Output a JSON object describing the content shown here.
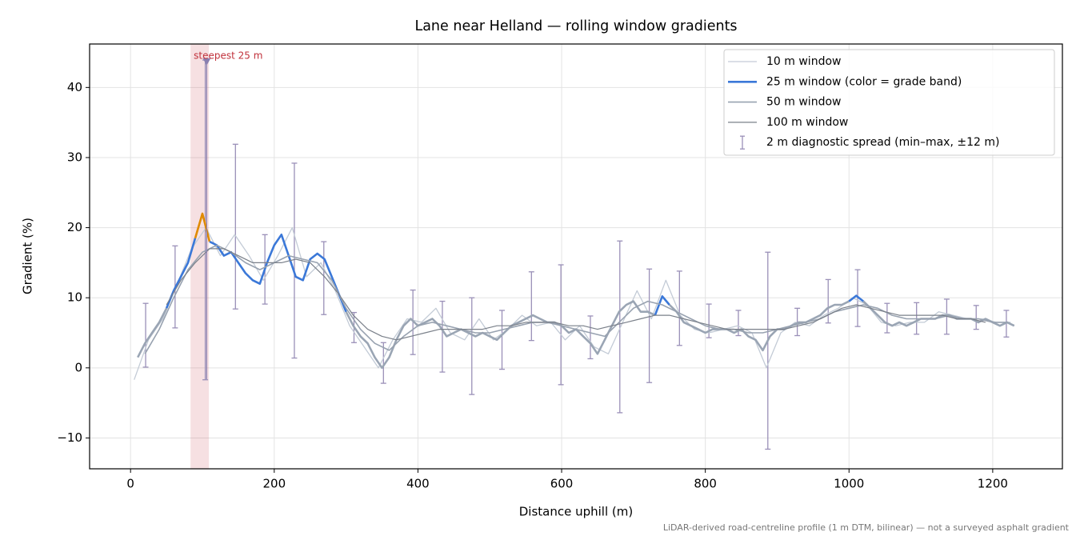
{
  "chart_data": {
    "type": "line",
    "title": "Lane near Helland — rolling window gradients",
    "x_label": "Distance uphill (m)",
    "y_label": "Gradient (%)",
    "footnote": "LiDAR-derived road-centreline profile (1 m DTM, bilinear) — not a surveyed asphalt gradient",
    "xlim": [
      -57,
      1297
    ],
    "ylim": [
      -14.4,
      46.2
    ],
    "xticks": [
      0,
      200,
      400,
      600,
      800,
      1000,
      1200
    ],
    "yticks": [
      {
        "value": -10,
        "label": "−10"
      },
      0,
      10,
      20,
      30,
      40
    ],
    "grid": true,
    "legend": "upper right",
    "series": [
      {
        "name": "10 m window",
        "color": "#c3cbd6",
        "width": 1.3,
        "x": [
          5,
          25,
          45,
          65,
          85,
          105,
          125,
          145,
          165,
          185,
          205,
          225,
          245,
          265,
          285,
          305,
          325,
          345,
          365,
          385,
          405,
          425,
          445,
          465,
          485,
          505,
          525,
          545,
          565,
          585,
          605,
          625,
          645,
          665,
          685,
          705,
          725,
          745,
          765,
          785,
          805,
          825,
          845,
          865,
          885,
          905,
          925,
          945,
          965,
          985,
          1005,
          1025,
          1045,
          1065,
          1085,
          1105,
          1125,
          1145,
          1165,
          1185,
          1205,
          1225
        ],
        "values": [
          -1.7,
          4,
          7,
          12,
          17,
          20,
          16,
          19,
          16,
          12.5,
          16,
          20,
          13,
          15,
          11,
          6,
          3,
          0,
          4,
          7,
          6.5,
          8.5,
          5,
          4,
          7,
          4,
          5.5,
          7.5,
          6,
          6.5,
          4,
          6,
          3,
          2,
          6.5,
          11,
          7,
          12.5,
          7.5,
          5.5,
          5,
          5.5,
          6,
          5,
          0,
          5,
          6.5,
          6,
          7.5,
          8.5,
          10,
          9,
          6.5,
          6,
          6.5,
          6.5,
          8,
          7.5,
          7,
          7,
          6.5,
          6.5
        ]
      },
      {
        "name": "25 m window (color = grade band)",
        "color": "#9aa5b4",
        "legend_color": "#3b78d8",
        "width": 2.6,
        "grade_bands": [
          {
            "from": 10,
            "color": "#3b78d8"
          },
          {
            "from": 20,
            "color": "#e08a00"
          }
        ],
        "x": [
          10,
          20,
          30,
          40,
          50,
          60,
          70,
          80,
          90,
          100,
          110,
          120,
          130,
          140,
          150,
          160,
          170,
          180,
          190,
          200,
          210,
          220,
          230,
          240,
          250,
          260,
          270,
          280,
          290,
          300,
          310,
          320,
          330,
          340,
          350,
          360,
          370,
          380,
          390,
          400,
          410,
          420,
          430,
          440,
          450,
          460,
          470,
          480,
          490,
          500,
          510,
          520,
          530,
          540,
          550,
          560,
          570,
          580,
          590,
          600,
          610,
          620,
          630,
          640,
          650,
          660,
          670,
          680,
          690,
          700,
          710,
          720,
          730,
          740,
          750,
          760,
          770,
          780,
          790,
          800,
          810,
          820,
          830,
          840,
          850,
          860,
          870,
          880,
          890,
          900,
          910,
          920,
          930,
          940,
          950,
          960,
          970,
          980,
          990,
          1000,
          1010,
          1020,
          1030,
          1040,
          1050,
          1060,
          1070,
          1080,
          1090,
          1100,
          1110,
          1120,
          1130,
          1140,
          1150,
          1160,
          1170,
          1180,
          1190,
          1200,
          1210,
          1220,
          1230
        ],
        "values": [
          1.5,
          3.5,
          5,
          6.5,
          8.5,
          11,
          13,
          15,
          18.5,
          22,
          18,
          17.5,
          16,
          16.5,
          15,
          13.5,
          12.5,
          12,
          15,
          17.5,
          19,
          16,
          13,
          12.5,
          15.5,
          16.3,
          15.5,
          13,
          10.5,
          8,
          6,
          4.5,
          3.5,
          1.5,
          0,
          1.5,
          4,
          6,
          7,
          6,
          6.5,
          7,
          6,
          4.5,
          5,
          5.5,
          5,
          4.5,
          5,
          4.5,
          4,
          5,
          6,
          6.5,
          7,
          7.5,
          7,
          6.5,
          6.5,
          6,
          5,
          5.5,
          4.5,
          3.5,
          2,
          4,
          6,
          8,
          9,
          9.5,
          8,
          8,
          7.5,
          10.2,
          9,
          8,
          6.5,
          6,
          5.5,
          5,
          5.5,
          5.5,
          5.5,
          5,
          5.5,
          4.5,
          4,
          2.5,
          4.5,
          5.5,
          5.5,
          6,
          6.5,
          6.5,
          7,
          7.5,
          8.5,
          9,
          9,
          9.5,
          10.3,
          9.5,
          8.5,
          7.5,
          6.5,
          6,
          6.5,
          6,
          6.5,
          7,
          7,
          7,
          7.5,
          7.5,
          7,
          7,
          7,
          6.5,
          7,
          6.5,
          6,
          6.5,
          6
        ]
      },
      {
        "name": "50 m window",
        "color": "#98a2b0",
        "width": 1.6,
        "x": [
          20,
          40,
          60,
          80,
          100,
          120,
          140,
          160,
          180,
          200,
          220,
          240,
          260,
          280,
          300,
          320,
          340,
          360,
          380,
          400,
          420,
          440,
          460,
          480,
          500,
          520,
          540,
          560,
          580,
          600,
          620,
          640,
          660,
          680,
          700,
          720,
          740,
          760,
          780,
          800,
          820,
          840,
          860,
          880,
          900,
          920,
          940,
          960,
          980,
          1000,
          1020,
          1040,
          1060,
          1080,
          1100,
          1120,
          1140,
          1160,
          1180,
          1200,
          1220
        ],
        "values": [
          2,
          5.5,
          10,
          14,
          16.5,
          17.5,
          16.5,
          15,
          14,
          15,
          16,
          15.5,
          15,
          12.5,
          8.5,
          5.5,
          3.5,
          2.5,
          4.5,
          6,
          6.5,
          6,
          5.5,
          5,
          5,
          5.5,
          6,
          6.5,
          6.5,
          6,
          5.5,
          5,
          4.5,
          6.5,
          8.5,
          9.5,
          9,
          8,
          7,
          6,
          5.5,
          5.5,
          5,
          5,
          5.5,
          6,
          6.5,
          7,
          8,
          8.5,
          9,
          8.5,
          7.5,
          7,
          7,
          7,
          7.5,
          7,
          7,
          6.5,
          6.5
        ]
      },
      {
        "name": "100 m window",
        "color": "#7a808a",
        "width": 1.2,
        "x": [
          50,
          70,
          90,
          110,
          130,
          150,
          170,
          190,
          210,
          230,
          250,
          270,
          290,
          310,
          330,
          350,
          370,
          390,
          410,
          430,
          450,
          470,
          490,
          510,
          530,
          550,
          570,
          590,
          610,
          630,
          650,
          670,
          690,
          710,
          730,
          750,
          770,
          790,
          810,
          830,
          850,
          870,
          890,
          910,
          930,
          950,
          970,
          990,
          1010,
          1030,
          1050,
          1070,
          1090,
          1110,
          1130,
          1150,
          1170,
          1190
        ],
        "values": [
          9,
          12.5,
          15,
          17,
          17,
          16,
          15,
          15,
          15,
          15.5,
          15,
          13,
          10.5,
          7.5,
          5.5,
          4.5,
          4,
          4.5,
          5,
          5.5,
          5.5,
          5.5,
          5.5,
          6,
          6,
          6.5,
          6.5,
          6.5,
          6,
          6,
          5.5,
          6,
          6.5,
          7,
          7.5,
          7.5,
          7,
          6.5,
          6,
          5.5,
          5.5,
          5.5,
          5.5,
          5.5,
          6,
          6.5,
          7.5,
          8.5,
          9,
          8.5,
          8,
          7.5,
          7.5,
          7.5,
          7.5,
          7,
          7,
          6.5
        ]
      }
    ],
    "errorbars": {
      "name": "2 m diagnostic spread (min–max, ±12 m)",
      "color": "#9a90b8",
      "x": [
        21,
        62,
        104,
        146,
        187,
        228,
        269,
        311,
        352,
        393,
        434,
        475,
        517,
        558,
        599,
        640,
        681,
        722,
        764,
        805,
        846,
        887,
        928,
        971,
        1012,
        1053,
        1094,
        1136,
        1177,
        1219
      ],
      "low": [
        0.1,
        5.7,
        -1.7,
        8.4,
        9.1,
        1.4,
        7.6,
        3.6,
        -2.2,
        1.9,
        -0.6,
        -3.8,
        -0.2,
        3.9,
        -2.4,
        1.3,
        -6.4,
        -2.1,
        3.2,
        4.3,
        4.6,
        -11.6,
        4.6,
        6.4,
        5.9,
        5,
        4.8,
        4.8,
        5.5,
        4.4
      ],
      "high": [
        9.2,
        17.4,
        43.9,
        31.9,
        19,
        29.2,
        18,
        7.9,
        3.6,
        11.1,
        9.5,
        10,
        8.2,
        13.7,
        14.7,
        7.4,
        18.1,
        14.1,
        13.8,
        9.1,
        8.2,
        16.5,
        8.5,
        12.6,
        14,
        9.2,
        9.3,
        9.8,
        8.9,
        8.2
      ]
    },
    "annotation": {
      "text": "steepest 25 m",
      "color": "#c0303a",
      "span": [
        83.5,
        109
      ],
      "x": 106,
      "y": 43.6,
      "marker_color": "#8a7fb0"
    }
  }
}
